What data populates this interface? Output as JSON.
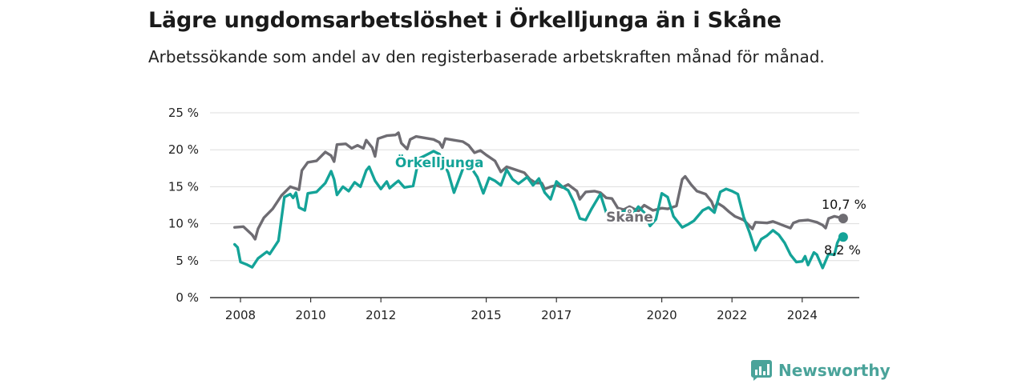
{
  "colors": {
    "orkelljunga": "#14a398",
    "skane": "#6e6c72",
    "grid": "#dddddd",
    "axis": "#333333",
    "brand": "#4aa39a"
  },
  "brand": {
    "name": "Newsworthy",
    "icon": "bar-chart-icon"
  },
  "chart_data": {
    "type": "line",
    "title": "Lägre ungdomsarbetslöshet i Örkelljunga än i Skåne",
    "subtitle": "Arbetssökande som andel av den registerbaserade arbetskraften månad för månad.",
    "xlabel": "",
    "ylabel": "",
    "xlim": [
      "2008-01",
      "2025-03"
    ],
    "ylim": [
      0,
      25
    ],
    "y_ticks": [
      0,
      5,
      10,
      15,
      20,
      25
    ],
    "y_tick_labels": [
      "0 %",
      "5 %",
      "10 %",
      "15 %",
      "20 %",
      "25 %"
    ],
    "x_ticks": [
      "2008",
      "2010",
      "2012",
      "2015",
      "2017",
      "2020",
      "2022",
      "2024"
    ],
    "grid": true,
    "legend": "none",
    "series": [
      {
        "name": "Skåne",
        "end_label": "10,7 %",
        "points": [
          [
            "2007-11",
            9.5
          ],
          [
            "2008-02",
            9.6
          ],
          [
            "2008-05",
            8.5
          ],
          [
            "2008-06",
            7.9
          ],
          [
            "2008-07",
            9.3
          ],
          [
            "2008-09",
            10.8
          ],
          [
            "2008-12",
            12.0
          ],
          [
            "2009-03",
            13.8
          ],
          [
            "2009-06",
            15.0
          ],
          [
            "2009-09",
            14.6
          ],
          [
            "2009-10",
            17.2
          ],
          [
            "2009-12",
            18.3
          ],
          [
            "2010-03",
            18.5
          ],
          [
            "2010-06",
            19.7
          ],
          [
            "2010-08",
            19.2
          ],
          [
            "2010-09",
            18.4
          ],
          [
            "2010-10",
            20.7
          ],
          [
            "2011-01",
            20.8
          ],
          [
            "2011-03",
            20.2
          ],
          [
            "2011-05",
            20.6
          ],
          [
            "2011-07",
            20.2
          ],
          [
            "2011-08",
            21.3
          ],
          [
            "2011-10",
            20.3
          ],
          [
            "2011-11",
            19.1
          ],
          [
            "2011-12",
            21.5
          ],
          [
            "2012-03",
            21.9
          ],
          [
            "2012-06",
            22.0
          ],
          [
            "2012-07",
            22.3
          ],
          [
            "2012-08",
            20.9
          ],
          [
            "2012-10",
            20.1
          ],
          [
            "2012-11",
            21.4
          ],
          [
            "2013-01",
            21.8
          ],
          [
            "2013-04",
            21.6
          ],
          [
            "2013-07",
            21.4
          ],
          [
            "2013-09",
            21.0
          ],
          [
            "2013-10",
            20.3
          ],
          [
            "2013-11",
            21.5
          ],
          [
            "2014-02",
            21.3
          ],
          [
            "2014-05",
            21.1
          ],
          [
            "2014-07",
            20.6
          ],
          [
            "2014-09",
            19.6
          ],
          [
            "2014-11",
            19.9
          ],
          [
            "2015-01",
            19.3
          ],
          [
            "2015-04",
            18.5
          ],
          [
            "2015-06",
            17.0
          ],
          [
            "2015-08",
            17.7
          ],
          [
            "2015-11",
            17.3
          ],
          [
            "2016-02",
            16.9
          ],
          [
            "2016-04",
            16.0
          ],
          [
            "2016-06",
            15.5
          ],
          [
            "2016-08",
            15.5
          ],
          [
            "2016-09",
            14.7
          ],
          [
            "2016-11",
            15.0
          ],
          [
            "2017-01",
            15.2
          ],
          [
            "2017-03",
            14.9
          ],
          [
            "2017-05",
            15.3
          ],
          [
            "2017-08",
            14.4
          ],
          [
            "2017-09",
            13.3
          ],
          [
            "2017-11",
            14.3
          ],
          [
            "2018-02",
            14.4
          ],
          [
            "2018-04",
            14.2
          ],
          [
            "2018-06",
            13.5
          ],
          [
            "2018-08",
            13.4
          ],
          [
            "2018-10",
            12.1
          ],
          [
            "2018-12",
            11.9
          ],
          [
            "2019-02",
            12.3
          ],
          [
            "2019-05",
            11.7
          ],
          [
            "2019-07",
            12.5
          ],
          [
            "2019-10",
            11.8
          ],
          [
            "2020-01",
            12.1
          ],
          [
            "2020-03",
            12.0
          ],
          [
            "2020-06",
            12.4
          ],
          [
            "2020-08",
            16.0
          ],
          [
            "2020-09",
            16.4
          ],
          [
            "2020-11",
            15.3
          ],
          [
            "2021-01",
            14.4
          ],
          [
            "2021-04",
            14.0
          ],
          [
            "2021-06",
            13.0
          ],
          [
            "2021-07",
            12.0
          ],
          [
            "2021-08",
            12.8
          ],
          [
            "2021-10",
            12.3
          ],
          [
            "2021-12",
            11.6
          ],
          [
            "2022-02",
            11.0
          ],
          [
            "2022-05",
            10.5
          ],
          [
            "2022-08",
            9.3
          ],
          [
            "2022-09",
            10.2
          ],
          [
            "2023-01",
            10.1
          ],
          [
            "2023-03",
            10.3
          ],
          [
            "2023-05",
            10.0
          ],
          [
            "2023-07",
            9.7
          ],
          [
            "2023-09",
            9.4
          ],
          [
            "2023-10",
            10.1
          ],
          [
            "2023-12",
            10.4
          ],
          [
            "2024-03",
            10.5
          ],
          [
            "2024-06",
            10.2
          ],
          [
            "2024-08",
            9.8
          ],
          [
            "2024-09",
            9.4
          ],
          [
            "2024-10",
            10.7
          ],
          [
            "2024-12",
            11.0
          ],
          [
            "2025-03",
            10.7
          ]
        ]
      },
      {
        "name": "Örkelljunga",
        "end_label": "8,2 %",
        "points": [
          [
            "2007-11",
            7.2
          ],
          [
            "2007-12",
            6.8
          ],
          [
            "2008-01",
            4.8
          ],
          [
            "2008-03",
            4.5
          ],
          [
            "2008-05",
            4.1
          ],
          [
            "2008-07",
            5.3
          ],
          [
            "2008-10",
            6.2
          ],
          [
            "2008-11",
            5.9
          ],
          [
            "2009-02",
            7.7
          ],
          [
            "2009-04",
            13.6
          ],
          [
            "2009-06",
            14.0
          ],
          [
            "2009-07",
            13.5
          ],
          [
            "2009-08",
            14.2
          ],
          [
            "2009-09",
            12.2
          ],
          [
            "2009-11",
            11.8
          ],
          [
            "2009-12",
            14.1
          ],
          [
            "2010-03",
            14.3
          ],
          [
            "2010-06",
            15.5
          ],
          [
            "2010-08",
            17.1
          ],
          [
            "2010-09",
            16.0
          ],
          [
            "2010-10",
            13.9
          ],
          [
            "2010-12",
            15.0
          ],
          [
            "2011-02",
            14.4
          ],
          [
            "2011-04",
            15.6
          ],
          [
            "2011-06",
            15.0
          ],
          [
            "2011-08",
            17.2
          ],
          [
            "2011-09",
            17.7
          ],
          [
            "2011-11",
            15.8
          ],
          [
            "2012-01",
            14.7
          ],
          [
            "2012-03",
            15.7
          ],
          [
            "2012-04",
            14.8
          ],
          [
            "2012-06",
            15.5
          ],
          [
            "2012-07",
            15.8
          ],
          [
            "2012-09",
            14.9
          ],
          [
            "2012-12",
            15.1
          ],
          [
            "2013-02",
            18.8
          ],
          [
            "2013-04",
            19.2
          ],
          [
            "2013-07",
            19.8
          ],
          [
            "2013-09",
            19.4
          ],
          [
            "2013-12",
            16.9
          ],
          [
            "2014-02",
            14.2
          ],
          [
            "2014-06",
            18.5
          ],
          [
            "2014-08",
            17.5
          ],
          [
            "2014-10",
            16.3
          ],
          [
            "2014-12",
            14.1
          ],
          [
            "2015-02",
            16.2
          ],
          [
            "2015-04",
            15.8
          ],
          [
            "2015-06",
            15.2
          ],
          [
            "2015-08",
            17.3
          ],
          [
            "2015-10",
            16.0
          ],
          [
            "2015-12",
            15.4
          ],
          [
            "2016-03",
            16.3
          ],
          [
            "2016-05",
            15.2
          ],
          [
            "2016-07",
            16.1
          ],
          [
            "2016-09",
            14.2
          ],
          [
            "2016-11",
            13.3
          ],
          [
            "2017-01",
            15.7
          ],
          [
            "2017-03",
            15.0
          ],
          [
            "2017-05",
            14.5
          ],
          [
            "2017-07",
            12.9
          ],
          [
            "2017-09",
            10.7
          ],
          [
            "2017-11",
            10.5
          ],
          [
            "2018-01",
            12.0
          ],
          [
            "2018-04",
            14.0
          ],
          [
            "2018-06",
            11.5
          ],
          [
            "2018-08",
            10.9
          ],
          [
            "2018-10",
            11.4
          ],
          [
            "2019-01",
            11.8
          ],
          [
            "2019-03",
            11.2
          ],
          [
            "2019-05",
            12.3
          ],
          [
            "2019-07",
            11.5
          ],
          [
            "2019-09",
            9.7
          ],
          [
            "2019-11",
            10.6
          ],
          [
            "2020-01",
            14.1
          ],
          [
            "2020-03",
            13.6
          ],
          [
            "2020-05",
            11.0
          ],
          [
            "2020-08",
            9.5
          ],
          [
            "2020-10",
            9.9
          ],
          [
            "2020-12",
            10.4
          ],
          [
            "2021-03",
            11.8
          ],
          [
            "2021-05",
            12.2
          ],
          [
            "2021-07",
            11.5
          ],
          [
            "2021-09",
            14.3
          ],
          [
            "2021-11",
            14.7
          ],
          [
            "2022-01",
            14.4
          ],
          [
            "2022-03",
            14.0
          ],
          [
            "2022-05",
            10.9
          ],
          [
            "2022-07",
            8.8
          ],
          [
            "2022-09",
            6.4
          ],
          [
            "2022-11",
            7.9
          ],
          [
            "2023-01",
            8.4
          ],
          [
            "2023-03",
            9.1
          ],
          [
            "2023-05",
            8.5
          ],
          [
            "2023-07",
            7.4
          ],
          [
            "2023-09",
            5.8
          ],
          [
            "2023-11",
            4.8
          ],
          [
            "2024-01",
            4.9
          ],
          [
            "2024-02",
            5.6
          ],
          [
            "2024-03",
            4.4
          ],
          [
            "2024-05",
            6.1
          ],
          [
            "2024-06",
            5.8
          ],
          [
            "2024-08",
            4.0
          ],
          [
            "2024-10",
            5.9
          ],
          [
            "2024-12",
            5.8
          ],
          [
            "2025-01",
            7.4
          ],
          [
            "2025-02",
            8.2
          ],
          [
            "2025-03",
            8.2
          ]
        ]
      }
    ]
  }
}
